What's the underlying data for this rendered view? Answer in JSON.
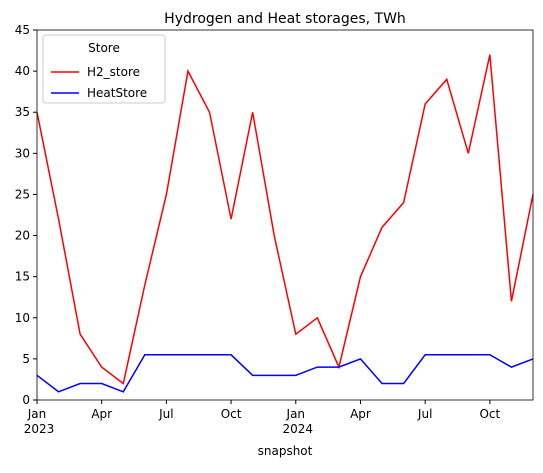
{
  "chart_data": {
    "type": "line",
    "title": "Hydrogen and Heat storages, TWh",
    "xlabel": "snapshot",
    "x": [
      "2023-01",
      "2023-02",
      "2023-03",
      "2023-04",
      "2023-05",
      "2023-06",
      "2023-07",
      "2023-08",
      "2023-09",
      "2023-10",
      "2023-11",
      "2023-12",
      "2024-01",
      "2024-02",
      "2024-03",
      "2024-04",
      "2024-05",
      "2024-06",
      "2024-07",
      "2024-08",
      "2024-09",
      "2024-10",
      "2024-11",
      "2024-12"
    ],
    "series": [
      {
        "name": "H2_store",
        "color": "#ff0000",
        "values": [
          35,
          22,
          8,
          4,
          2,
          14,
          25,
          40,
          35,
          22,
          35,
          20,
          8,
          10,
          4,
          15,
          21,
          24,
          36,
          39,
          30,
          42,
          12,
          25
        ]
      },
      {
        "name": "HeatStore",
        "color": "#0000ff",
        "values": [
          3,
          1,
          2,
          2,
          1,
          5.5,
          5.5,
          5.5,
          5.5,
          5.5,
          3,
          3,
          3,
          4,
          4,
          5,
          2,
          2,
          5.5,
          5.5,
          5.5,
          5.5,
          4,
          5
        ]
      }
    ],
    "xlim": [
      "2023-01",
      "2024-12"
    ],
    "xticks": [
      {
        "value": "2023-01",
        "label": "Jan\n2023"
      },
      {
        "value": "2023-04",
        "label": "Apr"
      },
      {
        "value": "2023-07",
        "label": "Jul"
      },
      {
        "value": "2023-10",
        "label": "Oct"
      },
      {
        "value": "2024-01",
        "label": "Jan\n2024"
      },
      {
        "value": "2024-04",
        "label": "Apr"
      },
      {
        "value": "2024-07",
        "label": "Jul"
      },
      {
        "value": "2024-10",
        "label": "Oct"
      }
    ],
    "ylim": [
      0,
      45
    ],
    "yticks": [
      0,
      5,
      10,
      15,
      20,
      25,
      30,
      35,
      40,
      45
    ],
    "legend_title": "Store",
    "legend_position": "upper left",
    "grid": false
  }
}
